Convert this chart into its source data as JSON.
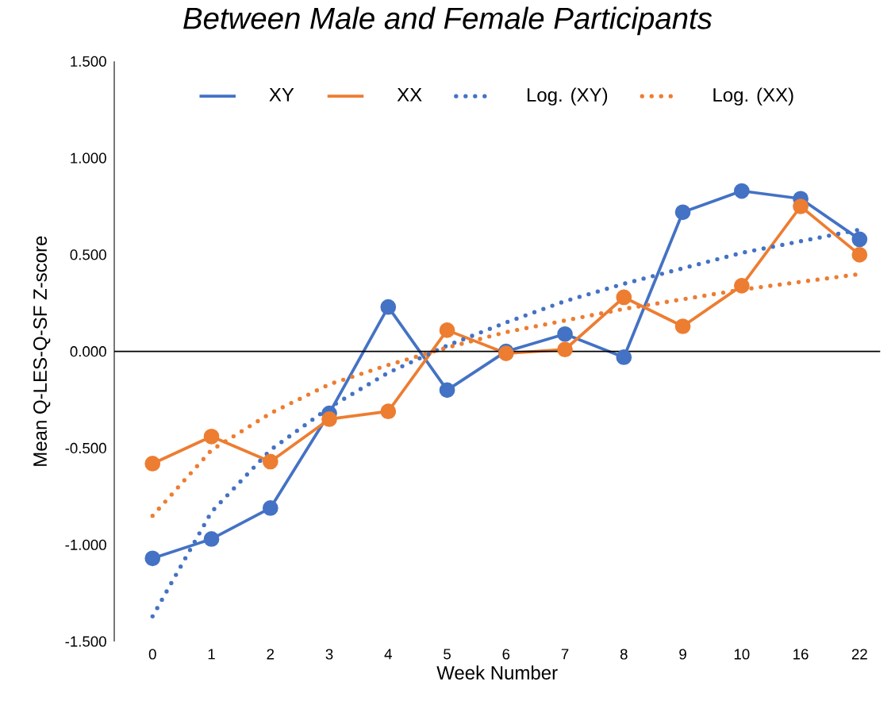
{
  "chart_data": {
    "type": "line",
    "title": "*Between Male and Female Participants*",
    "xlabel": "Week Number",
    "ylabel": "Mean Q-LES-Q-SF Z-score",
    "categories": [
      "0",
      "1",
      "2",
      "3",
      "4",
      "5",
      "6",
      "7",
      "8",
      "9",
      "10",
      "16",
      "22"
    ],
    "ylim": [
      -1.5,
      1.5
    ],
    "yticks": [
      {
        "value": -1.5,
        "label": "-1.500"
      },
      {
        "value": -1,
        "label": "-1.000"
      },
      {
        "value": -0.5,
        "label": "-0.500"
      },
      {
        "value": 0,
        "label": "0.000"
      },
      {
        "value": 0.5,
        "label": "0.500"
      },
      {
        "value": 1,
        "label": "1.000"
      },
      {
        "value": 1.5,
        "label": "1.500"
      }
    ],
    "grid": false,
    "legend": "top",
    "ref_lines": [
      {
        "axis": "y",
        "value": 0,
        "color": "#000000"
      }
    ],
    "series": [
      {
        "name": "XY",
        "color": "#4472c4",
        "marker": "circle",
        "line_style": "solid",
        "values": [
          -1.07,
          -0.97,
          -0.81,
          -0.32,
          0.23,
          -0.2,
          0.0,
          0.09,
          -0.03,
          0.72,
          0.83,
          0.79,
          0.58
        ]
      },
      {
        "name": "XX",
        "color": "#ed7d31",
        "marker": "circle",
        "line_style": "solid",
        "values": [
          -0.58,
          -0.44,
          -0.57,
          -0.35,
          -0.31,
          0.11,
          -0.01,
          0.01,
          0.28,
          0.13,
          0.34,
          0.75,
          0.5
        ]
      },
      {
        "name": "Log. (XY)",
        "color": "#4472c4",
        "marker": "none",
        "line_style": "dotted",
        "values": [
          -1.37,
          -0.83,
          -0.51,
          -0.29,
          -0.11,
          0.03,
          0.15,
          0.26,
          0.35,
          0.43,
          0.51,
          0.57,
          0.63
        ]
      },
      {
        "name": "Log. (XX)",
        "color": "#ed7d31",
        "marker": "none",
        "line_style": "dotted",
        "values": [
          -0.85,
          -0.51,
          -0.32,
          -0.17,
          -0.07,
          0.02,
          0.1,
          0.16,
          0.22,
          0.27,
          0.32,
          0.36,
          0.4
        ]
      }
    ]
  }
}
